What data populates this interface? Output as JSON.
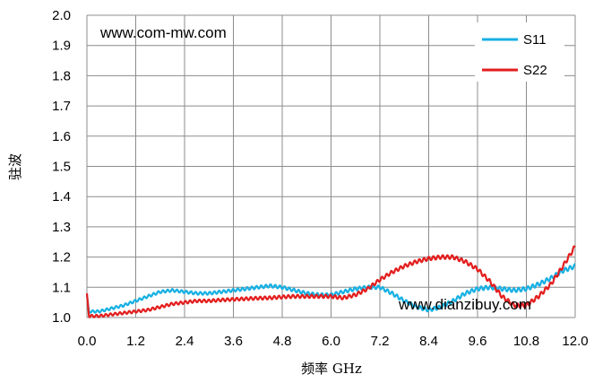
{
  "chart_data": {
    "type": "line",
    "title": "",
    "xlabel": "频率 GHz",
    "ylabel": "驻波",
    "xlim": [
      0,
      12
    ],
    "ylim": [
      1.0,
      2.0
    ],
    "x_ticks": [
      0,
      1.2,
      2.4,
      3.6,
      4.8,
      6.0,
      7.2,
      8.4,
      9.6,
      10.8,
      12.0
    ],
    "x_tick_labels": [
      "0.0",
      "1.2",
      "2.4",
      "3.6",
      "4.8",
      "6.0",
      "7.2",
      "8.4",
      "9.6",
      "10.8",
      "12.0"
    ],
    "y_ticks": [
      1.0,
      1.1,
      1.2,
      1.3,
      1.4,
      1.5,
      1.6,
      1.7,
      1.8,
      1.9,
      2.0
    ],
    "y_tick_labels": [
      "1.0",
      "1.1",
      "1.2",
      "1.3",
      "1.4",
      "1.5",
      "1.6",
      "1.7",
      "1.8",
      "1.9",
      "2.0"
    ],
    "grid": true,
    "legend_position": "top-right",
    "series": [
      {
        "name": "S11",
        "color": "#17b0e3",
        "x": [
          0.0,
          0.05,
          0.3,
          0.6,
          0.9,
          1.2,
          1.5,
          1.8,
          2.1,
          2.4,
          2.7,
          3.0,
          3.3,
          3.6,
          3.9,
          4.2,
          4.5,
          4.8,
          5.1,
          5.4,
          5.7,
          6.0,
          6.3,
          6.6,
          6.9,
          7.2,
          7.5,
          7.8,
          8.1,
          8.4,
          8.7,
          9.0,
          9.3,
          9.6,
          9.9,
          10.2,
          10.5,
          10.8,
          11.1,
          11.4,
          11.7,
          12.0
        ],
        "values": [
          1.075,
          1.02,
          1.02,
          1.03,
          1.04,
          1.055,
          1.07,
          1.085,
          1.09,
          1.085,
          1.08,
          1.08,
          1.085,
          1.09,
          1.095,
          1.1,
          1.105,
          1.1,
          1.09,
          1.08,
          1.075,
          1.075,
          1.085,
          1.095,
          1.1,
          1.1,
          1.08,
          1.055,
          1.035,
          1.025,
          1.035,
          1.055,
          1.08,
          1.095,
          1.1,
          1.095,
          1.09,
          1.095,
          1.11,
          1.13,
          1.155,
          1.17
        ]
      },
      {
        "name": "S22",
        "color": "#e31e1e",
        "x": [
          0.0,
          0.05,
          0.3,
          0.6,
          0.9,
          1.2,
          1.5,
          1.8,
          2.1,
          2.4,
          2.7,
          3.0,
          3.3,
          3.6,
          3.9,
          4.2,
          4.5,
          4.8,
          5.1,
          5.4,
          5.7,
          6.0,
          6.3,
          6.6,
          6.9,
          7.2,
          7.5,
          7.8,
          8.1,
          8.4,
          8.7,
          9.0,
          9.3,
          9.6,
          9.9,
          10.2,
          10.5,
          10.8,
          11.1,
          11.4,
          11.7,
          12.0
        ],
        "values": [
          1.08,
          1.005,
          1.005,
          1.01,
          1.015,
          1.02,
          1.025,
          1.035,
          1.045,
          1.05,
          1.055,
          1.055,
          1.058,
          1.06,
          1.062,
          1.064,
          1.065,
          1.068,
          1.07,
          1.07,
          1.07,
          1.07,
          1.065,
          1.075,
          1.095,
          1.125,
          1.15,
          1.17,
          1.185,
          1.195,
          1.2,
          1.2,
          1.185,
          1.16,
          1.12,
          1.07,
          1.04,
          1.04,
          1.07,
          1.11,
          1.17,
          1.235
        ]
      }
    ],
    "annotations": [
      "www.com-mw.com",
      "www.dianzibuy.com"
    ]
  }
}
